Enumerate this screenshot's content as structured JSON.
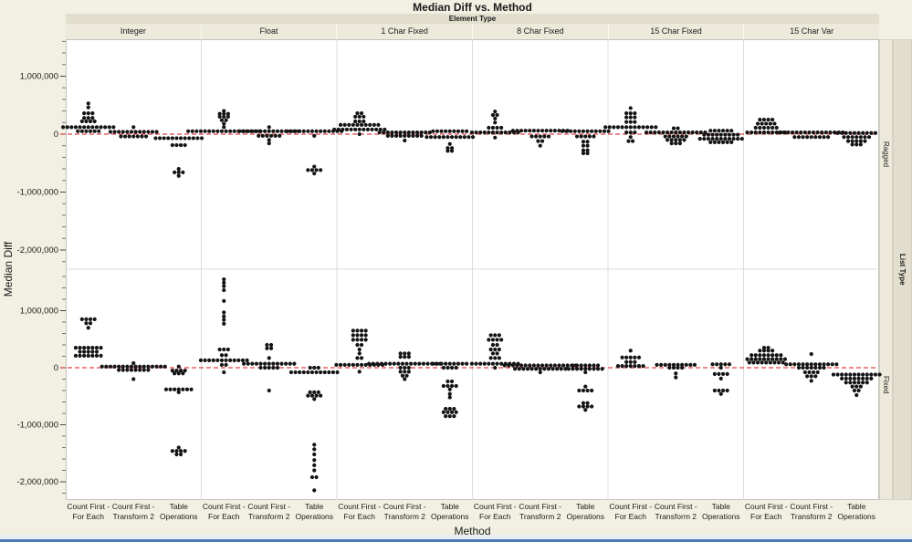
{
  "colors": {
    "page_background": "#f2f0e2",
    "band_background": "#e1decd",
    "header_background": "#edeadb",
    "panel_background": "#ffffff",
    "grid_line": "#dcdcdc",
    "dot": "#141414",
    "reference_line": "#e04343",
    "bottom_edge_line": "#4a79b6"
  },
  "chart_data": {
    "type": "scatter",
    "subtype": "stacked-dot-plot-trellis",
    "title": "Median Diff vs. Method",
    "xlabel": "Method",
    "ylabel": "Median Diff",
    "column_group_label": "Element Type",
    "row_group_label": "List Type",
    "columns": [
      "Integer",
      "Float",
      "1 Char Fixed",
      "8 Char Fixed",
      "15 Char Fixed",
      "15 Char Var"
    ],
    "rows": [
      "Ragged",
      "Fixed"
    ],
    "methods_full": [
      "Count First - For Each",
      "Count First - Transform 2",
      "Table Operations"
    ],
    "method_labels": [
      [
        "Count First -",
        "For Each"
      ],
      [
        "Count First -",
        "Transform 2"
      ],
      [
        "Table",
        "Operations"
      ]
    ],
    "y_axis": {
      "tick_values_millions": [
        1,
        0,
        -1,
        -2
      ],
      "tick_labels": [
        "1,000,000",
        "0",
        "-1,000,000",
        "-2,000,000"
      ],
      "minor_step_millions": 0.2,
      "range_top_panel_millions": [
        -2.33,
        1.64
      ],
      "range_bottom_panel_millions": [
        -2.32,
        1.73
      ]
    },
    "reference_line": {
      "y": 0,
      "style": "dashed"
    },
    "dot_rows_format": "[value_in_millions, dot_count]",
    "panels": {
      "Ragged": {
        "Integer": {
          "Count First - For Each": [
            [
              0.53,
              1
            ],
            [
              0.46,
              1
            ],
            [
              0.36,
              3
            ],
            [
              0.28,
              3
            ],
            [
              0.22,
              4
            ],
            [
              0.12,
              13
            ],
            [
              0.05,
              6
            ]
          ],
          "Count First - Transform 2": [
            [
              0.12,
              1
            ],
            [
              0.04,
              12
            ],
            [
              -0.04,
              7
            ]
          ],
          "Table Operations": [
            [
              -0.07,
              12
            ],
            [
              -0.19,
              4
            ],
            [
              -0.6,
              1
            ],
            [
              -0.66,
              3
            ],
            [
              -0.72,
              1
            ]
          ]
        },
        "Float": {
          "Count First - For Each": [
            [
              0.4,
              1
            ],
            [
              0.35,
              3
            ],
            [
              0.3,
              3
            ],
            [
              0.24,
              2
            ],
            [
              0.18,
              1
            ],
            [
              0.12,
              1
            ],
            [
              0.05,
              18
            ]
          ],
          "Count First - Transform 2": [
            [
              0.12,
              1
            ],
            [
              0.05,
              15
            ],
            [
              -0.03,
              6
            ],
            [
              -0.1,
              1
            ],
            [
              -0.16,
              1
            ]
          ],
          "Table Operations": [
            [
              0.05,
              14
            ],
            [
              -0.03,
              1
            ],
            [
              -0.56,
              1
            ],
            [
              -0.62,
              4
            ],
            [
              -0.68,
              1
            ]
          ]
        },
        "1 Char Fixed": {
          "Count First - For Each": [
            [
              0.36,
              2
            ],
            [
              0.3,
              3
            ],
            [
              0.22,
              3
            ],
            [
              0.16,
              10
            ],
            [
              0.08,
              13
            ],
            [
              0.0,
              1
            ]
          ],
          "Count First - Transform 2": [
            [
              0.03,
              13
            ],
            [
              -0.03,
              9
            ],
            [
              -0.11,
              1
            ]
          ],
          "Table Operations": [
            [
              0.05,
              9
            ],
            [
              -0.05,
              12
            ],
            [
              -0.17,
              1
            ],
            [
              -0.24,
              2
            ],
            [
              -0.29,
              2
            ]
          ]
        },
        "8 Char Fixed": {
          "Count First - For Each": [
            [
              0.39,
              1
            ],
            [
              0.33,
              2
            ],
            [
              0.27,
              1
            ],
            [
              0.2,
              1
            ],
            [
              0.11,
              4
            ],
            [
              0.03,
              12
            ],
            [
              -0.06,
              1
            ]
          ],
          "Count First - Transform 2": [
            [
              0.06,
              14
            ],
            [
              -0.04,
              5
            ],
            [
              -0.12,
              2
            ],
            [
              -0.2,
              1
            ]
          ],
          "Table Operations": [
            [
              0.05,
              12
            ],
            [
              -0.04,
              5
            ],
            [
              -0.13,
              2
            ],
            [
              -0.2,
              2
            ],
            [
              -0.28,
              2
            ],
            [
              -0.33,
              2
            ]
          ]
        },
        "15 Char Fixed": {
          "Count First - For Each": [
            [
              0.45,
              1
            ],
            [
              0.36,
              3
            ],
            [
              0.29,
              3
            ],
            [
              0.21,
              3
            ],
            [
              0.12,
              13
            ],
            [
              0.03,
              3
            ],
            [
              -0.05,
              1
            ],
            [
              -0.12,
              2
            ]
          ],
          "Count First - Transform 2": [
            [
              0.1,
              2
            ],
            [
              0.03,
              15
            ],
            [
              -0.04,
              6
            ],
            [
              -0.1,
              5
            ],
            [
              -0.16,
              3
            ]
          ],
          "Table Operations": [
            [
              0.06,
              6
            ],
            [
              -0.01,
              9
            ],
            [
              -0.08,
              11
            ],
            [
              -0.14,
              6
            ]
          ]
        },
        "15 Char Var": {
          "Count First - For Each": [
            [
              0.25,
              4
            ],
            [
              0.18,
              5
            ],
            [
              0.11,
              6
            ],
            [
              0.03,
              10
            ]
          ],
          "Count First - Transform 2": [
            [
              0.03,
              16
            ],
            [
              -0.05,
              9
            ]
          ],
          "Table Operations": [
            [
              0.02,
              10
            ],
            [
              -0.05,
              7
            ],
            [
              -0.12,
              5
            ],
            [
              -0.18,
              3
            ]
          ]
        }
      },
      "Fixed": {
        "Integer": {
          "Count First - For Each": [
            [
              0.85,
              4
            ],
            [
              0.78,
              2
            ],
            [
              0.7,
              1
            ],
            [
              0.35,
              7
            ],
            [
              0.28,
              5
            ],
            [
              0.21,
              7
            ]
          ],
          "Count First - Transform 2": [
            [
              0.08,
              1
            ],
            [
              0.02,
              16
            ],
            [
              -0.04,
              8
            ],
            [
              -0.2,
              1
            ]
          ],
          "Table Operations": [
            [
              0.02,
              1
            ],
            [
              -0.05,
              4
            ],
            [
              -0.1,
              3
            ],
            [
              -0.38,
              7
            ],
            [
              -0.43,
              1
            ],
            [
              -1.4,
              1
            ],
            [
              -1.46,
              4
            ],
            [
              -1.52,
              2
            ]
          ]
        },
        "Float": {
          "Count First - For Each": [
            [
              1.55,
              1
            ],
            [
              1.49,
              1
            ],
            [
              1.43,
              1
            ],
            [
              1.36,
              1
            ],
            [
              1.17,
              1
            ],
            [
              0.97,
              1
            ],
            [
              0.9,
              1
            ],
            [
              0.84,
              1
            ],
            [
              0.77,
              1
            ],
            [
              0.32,
              3
            ],
            [
              0.22,
              2
            ],
            [
              0.13,
              12
            ],
            [
              0.05,
              2
            ],
            [
              -0.08,
              1
            ]
          ],
          "Count First - Transform 2": [
            [
              0.4,
              2
            ],
            [
              0.34,
              2
            ],
            [
              0.17,
              1
            ],
            [
              0.07,
              13
            ],
            [
              0.0,
              5
            ],
            [
              -0.4,
              1
            ]
          ],
          "Table Operations": [
            [
              0.0,
              3
            ],
            [
              -0.08,
              12
            ],
            [
              -0.43,
              3
            ],
            [
              -0.49,
              4
            ],
            [
              -0.55,
              1
            ],
            [
              -1.35,
              1
            ],
            [
              -1.43,
              1
            ],
            [
              -1.52,
              1
            ],
            [
              -1.62,
              1
            ],
            [
              -1.71,
              1
            ],
            [
              -1.8,
              1
            ],
            [
              -1.92,
              2
            ],
            [
              -2.15,
              1
            ]
          ]
        },
        "1 Char Fixed": {
          "Count First - For Each": [
            [
              0.65,
              4
            ],
            [
              0.57,
              4
            ],
            [
              0.49,
              4
            ],
            [
              0.4,
              2
            ],
            [
              0.32,
              1
            ],
            [
              0.25,
              1
            ],
            [
              0.17,
              2
            ],
            [
              0.05,
              12
            ],
            [
              -0.07,
              1
            ]
          ],
          "Count First - Transform 2": [
            [
              0.25,
              3
            ],
            [
              0.19,
              3
            ],
            [
              0.07,
              18
            ],
            [
              0.0,
              3
            ],
            [
              -0.07,
              3
            ],
            [
              -0.14,
              2
            ],
            [
              -0.2,
              1
            ]
          ],
          "Table Operations": [
            [
              0.07,
              9
            ],
            [
              0.0,
              4
            ],
            [
              -0.24,
              2
            ],
            [
              -0.32,
              4
            ],
            [
              -0.38,
              1
            ],
            [
              -0.46,
              1
            ],
            [
              -0.52,
              1
            ],
            [
              -0.72,
              3
            ],
            [
              -0.78,
              4
            ],
            [
              -0.85,
              3
            ]
          ]
        },
        "8 Char Fixed": {
          "Count First - For Each": [
            [
              0.57,
              3
            ],
            [
              0.49,
              4
            ],
            [
              0.4,
              2
            ],
            [
              0.32,
              3
            ],
            [
              0.25,
              2
            ],
            [
              0.17,
              3
            ],
            [
              0.07,
              12
            ],
            [
              0.0,
              1
            ]
          ],
          "Count First - Transform 2": [
            [
              0.04,
              18
            ],
            [
              -0.02,
              13
            ],
            [
              -0.08,
              1
            ]
          ],
          "Table Operations": [
            [
              0.04,
              7
            ],
            [
              -0.02,
              9
            ],
            [
              -0.08,
              1
            ],
            [
              -0.33,
              1
            ],
            [
              -0.4,
              4
            ],
            [
              -0.62,
              2
            ],
            [
              -0.68,
              4
            ],
            [
              -0.74,
              1
            ]
          ]
        },
        "15 Char Fixed": {
          "Count First - For Each": [
            [
              0.3,
              1
            ],
            [
              0.18,
              5
            ],
            [
              0.1,
              3
            ],
            [
              0.03,
              7
            ]
          ],
          "Count First - Transform 2": [
            [
              0.05,
              10
            ],
            [
              0.0,
              4
            ],
            [
              -0.1,
              1
            ],
            [
              -0.17,
              1
            ]
          ],
          "Table Operations": [
            [
              0.06,
              5
            ],
            [
              0.0,
              1
            ],
            [
              -0.11,
              4
            ],
            [
              -0.19,
              1
            ],
            [
              -0.4,
              4
            ],
            [
              -0.46,
              1
            ]
          ]
        },
        "15 Char Var": {
          "Count First - For Each": [
            [
              0.35,
              2
            ],
            [
              0.3,
              4
            ],
            [
              0.22,
              8
            ],
            [
              0.15,
              10
            ],
            [
              0.09,
              9
            ]
          ],
          "Count First - Transform 2": [
            [
              0.24,
              1
            ],
            [
              0.06,
              13
            ],
            [
              0.0,
              7
            ],
            [
              -0.08,
              4
            ],
            [
              -0.15,
              3
            ],
            [
              -0.23,
              1
            ]
          ],
          "Table Operations": [
            [
              -0.12,
              12
            ],
            [
              -0.19,
              8
            ],
            [
              -0.26,
              6
            ],
            [
              -0.33,
              3
            ],
            [
              -0.4,
              2
            ],
            [
              -0.48,
              1
            ]
          ]
        }
      }
    }
  }
}
